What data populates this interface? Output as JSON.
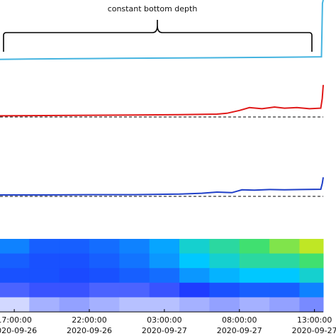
{
  "chart_data": [
    {
      "type": "line",
      "annotation": "constant bottom depth",
      "xlim": [
        "2020-09-26 16:03:00",
        "2020-09-27 13:35:00"
      ],
      "ylim": [
        0,
        10
      ],
      "x": [
        "2020-09-26 16:03:00",
        "2020-09-26 18:00:00",
        "2020-09-26 21:00:00",
        "2020-09-27 00:00:00",
        "2020-09-27 03:00:00",
        "2020-09-27 06:00:00",
        "2020-09-27 09:00:00",
        "2020-09-27 12:00:00",
        "2020-09-27 13:28:00",
        "2020-09-27 13:32:00",
        "2020-09-27 13:35:00"
      ],
      "series": [
        {
          "color": "#45b4e0",
          "values": [
            0.7,
            0.75,
            0.8,
            0.85,
            0.9,
            0.95,
            1.0,
            1.05,
            1.1,
            9.5,
            10
          ]
        }
      ]
    },
    {
      "type": "line",
      "xlim": [
        "2020-09-26 16:03:00",
        "2020-09-27 13:35:00"
      ],
      "ylim": [
        0,
        10
      ],
      "reference_line": {
        "value": 1.25,
        "color": "#000000",
        "dashed": true
      },
      "x": [
        "2020-09-26 16:03:00",
        "2020-09-26 19:00:00",
        "2020-09-26 22:00:00",
        "2020-09-27 01:00:00",
        "2020-09-27 04:00:00",
        "2020-09-27 06:30:00",
        "2020-09-27 07:10:00",
        "2020-09-27 08:00:00",
        "2020-09-27 08:40:00",
        "2020-09-27 09:30:00",
        "2020-09-27 10:20:00",
        "2020-09-27 11:00:00",
        "2020-09-27 11:50:00",
        "2020-09-27 12:40:00",
        "2020-09-27 13:25:00",
        "2020-09-27 13:31:00",
        "2020-09-27 13:35:00"
      ],
      "series": [
        {
          "color": "#e01818",
          "values": [
            1.45,
            1.5,
            1.55,
            1.6,
            1.65,
            1.75,
            1.9,
            2.4,
            2.9,
            2.7,
            3.0,
            2.8,
            2.9,
            2.7,
            2.8,
            4.5,
            6.9
          ]
        }
      ]
    },
    {
      "type": "line",
      "xlim": [
        "2020-09-26 16:03:00",
        "2020-09-27 13:35:00"
      ],
      "ylim": [
        0,
        10
      ],
      "reference_line": {
        "value": 2.25,
        "color": "#000000",
        "dashed": true
      },
      "x": [
        "2020-09-26 16:03:00",
        "2020-09-26 19:00:00",
        "2020-09-26 22:00:00",
        "2020-09-27 01:00:00",
        "2020-09-27 04:00:00",
        "2020-09-27 05:30:00",
        "2020-09-27 06:30:00",
        "2020-09-27 07:30:00",
        "2020-09-27 08:10:00",
        "2020-09-27 09:00:00",
        "2020-09-27 10:00:00",
        "2020-09-27 11:00:00",
        "2020-09-27 12:00:00",
        "2020-09-27 13:25:00",
        "2020-09-27 13:31:00",
        "2020-09-27 13:35:00"
      ],
      "series": [
        {
          "color": "#2040c8",
          "values": [
            2.5,
            2.5,
            2.55,
            2.55,
            2.65,
            2.8,
            3.0,
            2.9,
            3.4,
            3.35,
            3.45,
            3.4,
            3.45,
            3.5,
            4.5,
            5.6
          ]
        }
      ]
    },
    {
      "type": "heatmap",
      "xlim": [
        "2020-09-26 16:03:00",
        "2020-09-27 13:35:00"
      ],
      "xbins": [
        "2020-09-26 16:03:00",
        "2020-09-26 18:00:00",
        "2020-09-26 20:00:00",
        "2020-09-26 22:00:00",
        "2020-09-27 00:00:00",
        "2020-09-27 02:00:00",
        "2020-09-27 04:00:00",
        "2020-09-27 06:00:00",
        "2020-09-27 08:00:00",
        "2020-09-27 10:00:00",
        "2020-09-27 12:00:00",
        "2020-09-27 13:35:00"
      ],
      "values": [
        [
          0.35,
          0.3,
          0.3,
          0.32,
          0.35,
          0.4,
          0.5,
          0.55,
          0.6,
          0.65,
          0.7
        ],
        [
          0.3,
          0.28,
          0.28,
          0.3,
          0.33,
          0.38,
          0.45,
          0.5,
          0.55,
          0.55,
          0.6
        ],
        [
          0.28,
          0.28,
          0.27,
          0.28,
          0.3,
          0.32,
          0.38,
          0.42,
          0.45,
          0.45,
          0.5
        ],
        [
          0.2,
          0.22,
          0.22,
          0.2,
          0.2,
          0.22,
          0.25,
          0.28,
          0.3,
          0.3,
          0.35
        ],
        [
          0.05,
          0.1,
          0.12,
          0.1,
          0.08,
          0.08,
          0.1,
          0.12,
          0.1,
          0.12,
          0.15
        ]
      ],
      "xticks": [
        {
          "value": "2020-09-26 17:00:00",
          "label": [
            "17:00:00",
            "2020-09-26"
          ]
        },
        {
          "value": "2020-09-26 22:00:00",
          "label": [
            "22:00:00",
            "2020-09-26"
          ]
        },
        {
          "value": "2020-09-27 03:00:00",
          "label": [
            "03:00:00",
            "2020-09-27"
          ]
        },
        {
          "value": "2020-09-27 08:00:00",
          "label": [
            "08:00:00",
            "2020-09-27"
          ]
        },
        {
          "value": "2020-09-27 13:00:00",
          "label": [
            "13:00:00",
            "2020-09-27"
          ]
        }
      ]
    }
  ]
}
